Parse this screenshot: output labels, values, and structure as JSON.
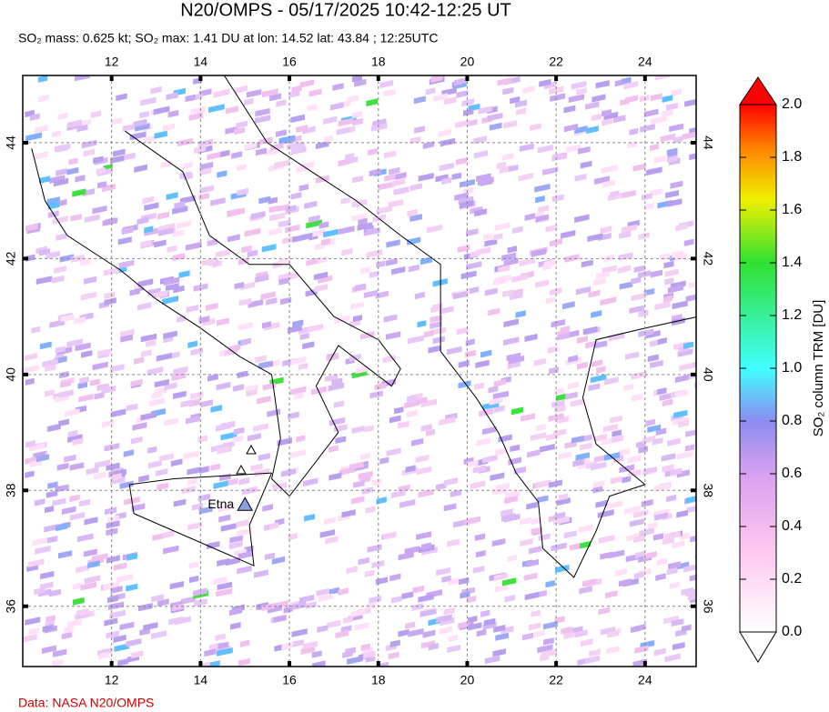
{
  "map": {
    "title": "N20/OMPS - 05/17/2025 10:42-12:25 UT",
    "subtitle": "SO₂ mass: 0.625 kt; SO₂ max: 1.41 DU at lon: 14.52 lat: 43.84 ; 12:25UTC",
    "lonlim": [
      10.0,
      25.15
    ],
    "latlim": [
      34.96,
      45.16
    ],
    "lonticks": [
      12,
      14,
      16,
      18,
      20,
      22,
      24
    ],
    "latticks": [
      36,
      38,
      40,
      42,
      44
    ],
    "grid": true,
    "volcanoes": [
      {
        "name": "Etna",
        "lon": 15.0,
        "lat": 37.75
      }
    ],
    "colorbar": {
      "label": "SO₂ column TRM [DU]",
      "clim": [
        0,
        2
      ],
      "ticks": [
        {
          "value": 0,
          "label": "0.0"
        },
        0.2,
        0.4,
        0.6,
        0.8,
        {
          "value": 1,
          "label": "1.0"
        },
        1.2,
        1.4,
        1.6,
        1.8,
        {
          "value": 2,
          "label": "2.0"
        }
      ]
    },
    "credit": "Data: NASA N20/OMPS"
  }
}
